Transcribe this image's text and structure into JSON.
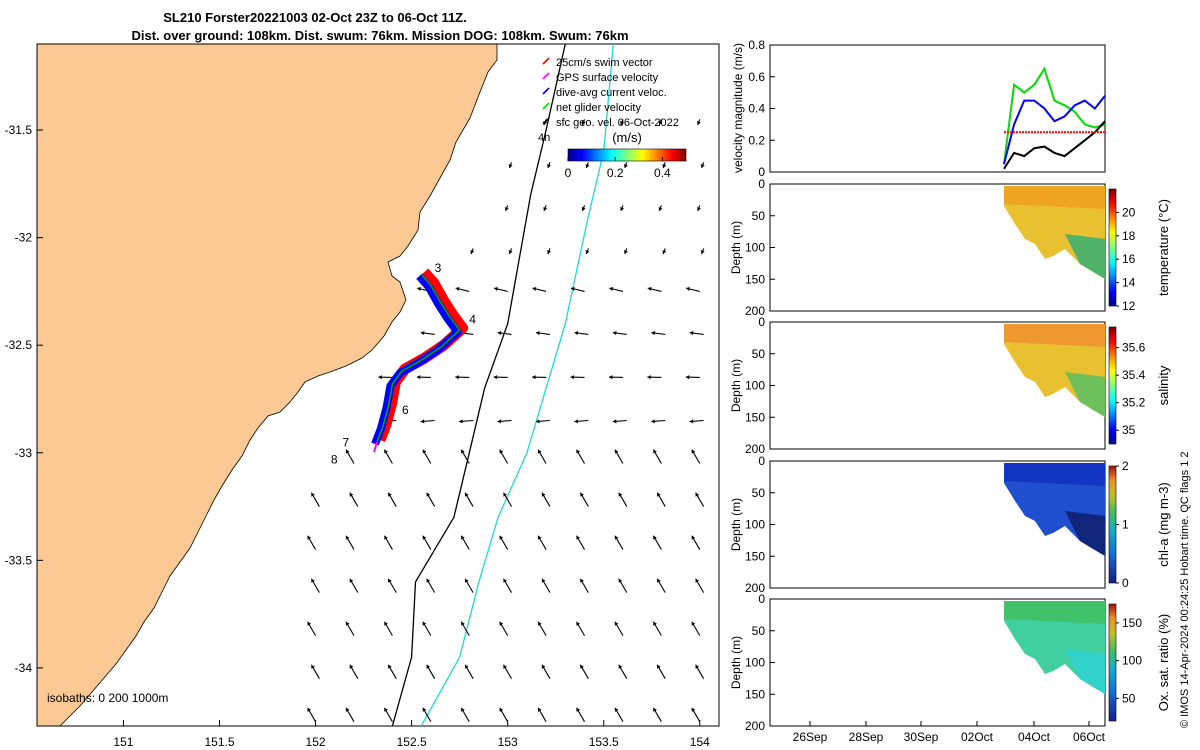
{
  "figure": {
    "title_line1": "SL210 Forster20221003 02-Oct 23Z to 06-Oct 11Z.",
    "title_line2": "Dist. over ground: 108km. Dist. swum: 76km. Mission DOG: 108km. Swum: 76km",
    "credit": "© IMOS 14-Apr-2024 00:24:25 Hobart time. QC flags 1  2"
  },
  "chart_data": [
    {
      "type": "scatter",
      "panel": "map",
      "x_ticks": [
        "151",
        "151.5",
        "152",
        "152.5",
        "153",
        "153.5",
        "154"
      ],
      "y_ticks": [
        "-31.5",
        "-32",
        "-32.5",
        "-33",
        "-33.5",
        "-34"
      ],
      "xlim": [
        150.55,
        154.1
      ],
      "ylim": [
        -34.27,
        -31.1
      ],
      "legend_location": "top-right",
      "legend": [
        {
          "label": "25cm/s swim vector",
          "color": "#ff0000"
        },
        {
          "label": "GPS surface velocity",
          "color": "#ff00ff"
        },
        {
          "label": "dive-avg current veloc.",
          "color": "#0000ff"
        },
        {
          "label": "net glider velocity",
          "color": "#00dd00"
        },
        {
          "label": "sfc geo. vel. 06-Oct-2022",
          "color": "#000000"
        }
      ],
      "colorbar": {
        "label": "(m/s)",
        "ticks": [
          "0",
          "0.2",
          "0.4"
        ],
        "range": [
          0,
          0.5
        ]
      },
      "isobaths_label": "isobaths: 0   200  1000m",
      "scale_arrow_label": "4h",
      "track_day_labels": [
        {
          "text": "3",
          "lon": 152.62,
          "lat": -32.16
        },
        {
          "text": "4",
          "lon": 152.8,
          "lat": -32.4
        },
        {
          "text": "6",
          "lon": 152.45,
          "lat": -32.82
        },
        {
          "text": "7",
          "lon": 152.14,
          "lat": -32.97
        },
        {
          "text": "8",
          "lon": 152.08,
          "lat": -33.05
        }
      ],
      "track": [
        {
          "lon": 152.55,
          "lat": -32.17
        },
        {
          "lon": 152.6,
          "lat": -32.22
        },
        {
          "lon": 152.65,
          "lat": -32.3
        },
        {
          "lon": 152.7,
          "lat": -32.37
        },
        {
          "lon": 152.75,
          "lat": -32.43
        },
        {
          "lon": 152.65,
          "lat": -32.51
        },
        {
          "lon": 152.55,
          "lat": -32.57
        },
        {
          "lon": 152.45,
          "lat": -32.62
        },
        {
          "lon": 152.4,
          "lat": -32.68
        },
        {
          "lon": 152.38,
          "lat": -32.78
        },
        {
          "lon": 152.35,
          "lat": -32.88
        },
        {
          "lon": 152.32,
          "lat": -32.95
        }
      ],
      "isobath_200m": [
        {
          "lon": 152.4,
          "lat": -34.27
        },
        {
          "lon": 152.5,
          "lat": -33.95
        },
        {
          "lon": 152.52,
          "lat": -33.6
        },
        {
          "lon": 152.72,
          "lat": -33.3
        },
        {
          "lon": 152.8,
          "lat": -33.0
        },
        {
          "lon": 152.88,
          "lat": -32.7
        },
        {
          "lon": 153.0,
          "lat": -32.4
        },
        {
          "lon": 153.06,
          "lat": -32.1
        },
        {
          "lon": 153.12,
          "lat": -31.8
        },
        {
          "lon": 153.2,
          "lat": -31.5
        },
        {
          "lon": 153.3,
          "lat": -31.1
        }
      ],
      "isobath_1000m": [
        {
          "lon": 152.55,
          "lat": -34.27
        },
        {
          "lon": 152.75,
          "lat": -33.95
        },
        {
          "lon": 152.85,
          "lat": -33.6
        },
        {
          "lon": 152.95,
          "lat": -33.3
        },
        {
          "lon": 153.1,
          "lat": -33.0
        },
        {
          "lon": 153.2,
          "lat": -32.7
        },
        {
          "lon": 153.3,
          "lat": -32.4
        },
        {
          "lon": 153.36,
          "lat": -32.15
        },
        {
          "lon": 153.42,
          "lat": -31.9
        },
        {
          "lon": 153.5,
          "lat": -31.6
        },
        {
          "lon": 153.55,
          "lat": -31.1
        }
      ]
    },
    {
      "type": "line",
      "panel": "velocity",
      "ylabel": "velocity magnitude (m/s)",
      "ylim": [
        0,
        0.8
      ],
      "y_ticks": [
        "0",
        "0.2",
        "0.4",
        "0.6",
        "0.8"
      ],
      "series": [
        {
          "color": "#00dd00",
          "x": [
            0,
            0.1,
            0.2,
            0.3,
            0.4,
            0.5,
            0.6,
            0.7,
            0.8,
            0.9,
            1
          ],
          "y": [
            0.05,
            0.55,
            0.5,
            0.55,
            0.65,
            0.45,
            0.42,
            0.38,
            0.3,
            0.28,
            0.3
          ]
        },
        {
          "color": "#0000ff",
          "x": [
            0,
            0.1,
            0.2,
            0.3,
            0.4,
            0.5,
            0.6,
            0.7,
            0.8,
            0.9,
            1
          ],
          "y": [
            0.05,
            0.3,
            0.45,
            0.45,
            0.4,
            0.32,
            0.35,
            0.42,
            0.45,
            0.4,
            0.48
          ]
        },
        {
          "color": "#000000",
          "x": [
            0,
            0.1,
            0.2,
            0.3,
            0.4,
            0.5,
            0.6,
            0.7,
            0.8,
            0.9,
            1
          ],
          "y": [
            0.02,
            0.12,
            0.1,
            0.15,
            0.16,
            0.12,
            0.1,
            0.15,
            0.2,
            0.25,
            0.32
          ]
        },
        {
          "color": "#ff0000",
          "x": [
            0,
            1
          ],
          "y": [
            0.25,
            0.25
          ]
        }
      ]
    },
    {
      "type": "heatmap",
      "panel": "temperature",
      "ylabel": "Depth (m)",
      "y_ticks": [
        "0",
        "50",
        "100",
        "150",
        "200"
      ],
      "colorbar_label": "temperature (°C)",
      "colorbar_ticks": [
        "12",
        "14",
        "16",
        "18",
        "20"
      ],
      "clim": [
        12,
        22
      ]
    },
    {
      "type": "heatmap",
      "panel": "salinity",
      "ylabel": "Depth (m)",
      "y_ticks": [
        "0",
        "50",
        "100",
        "150",
        "200"
      ],
      "colorbar_label": "salinity",
      "colorbar_ticks": [
        "35",
        "35.2",
        "35.4",
        "35.6"
      ],
      "clim": [
        34.9,
        35.75
      ]
    },
    {
      "type": "heatmap",
      "panel": "chla",
      "ylabel": "Depth (m)",
      "y_ticks": [
        "0",
        "50",
        "100",
        "150",
        "200"
      ],
      "colorbar_label": "chl-a (mg m-3)",
      "colorbar_ticks": [
        "0",
        "1",
        "2"
      ],
      "clim": [
        0,
        2
      ]
    },
    {
      "type": "heatmap",
      "panel": "oxygen",
      "ylabel": "Depth (m)",
      "y_ticks": [
        "0",
        "50",
        "100",
        "150",
        "200"
      ],
      "colorbar_label": "Ox. sat. ratio (%)",
      "colorbar_ticks": [
        "50",
        "100",
        "150"
      ],
      "clim": [
        20,
        175
      ]
    },
    {
      "type": "time_axis",
      "panel": "shared",
      "x_ticks": [
        "26Sep",
        "28Sep",
        "30Sep",
        "02Oct",
        "04Oct",
        "06Oct"
      ]
    }
  ]
}
